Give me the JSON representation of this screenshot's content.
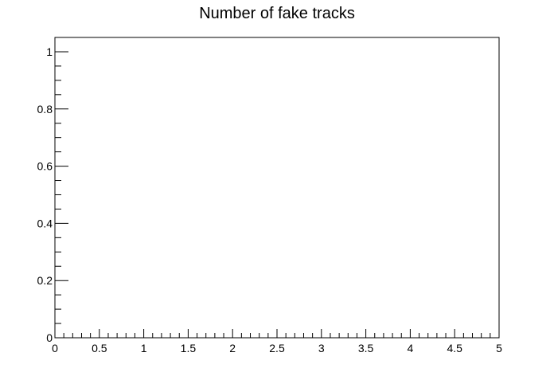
{
  "chart_data": {
    "type": "line",
    "title": "Number of fake tracks",
    "xlabel": "",
    "ylabel": "",
    "xlim": [
      0,
      5
    ],
    "ylim": [
      0,
      1.05
    ],
    "x_major_ticks": [
      0,
      0.5,
      1,
      1.5,
      2,
      2.5,
      3,
      3.5,
      4,
      4.5,
      5
    ],
    "x_tick_labels": [
      "0",
      "0.5",
      "1",
      "1.5",
      "2",
      "2.5",
      "3",
      "3.5",
      "4",
      "4.5",
      "5"
    ],
    "x_minor_divisions": 5,
    "y_major_ticks": [
      0,
      0.2,
      0.4,
      0.6,
      0.8,
      1
    ],
    "y_tick_labels": [
      "0",
      "0.2",
      "0.4",
      "0.6",
      "0.8",
      "1"
    ],
    "y_minor_divisions": 4,
    "grid": false,
    "series": []
  }
}
